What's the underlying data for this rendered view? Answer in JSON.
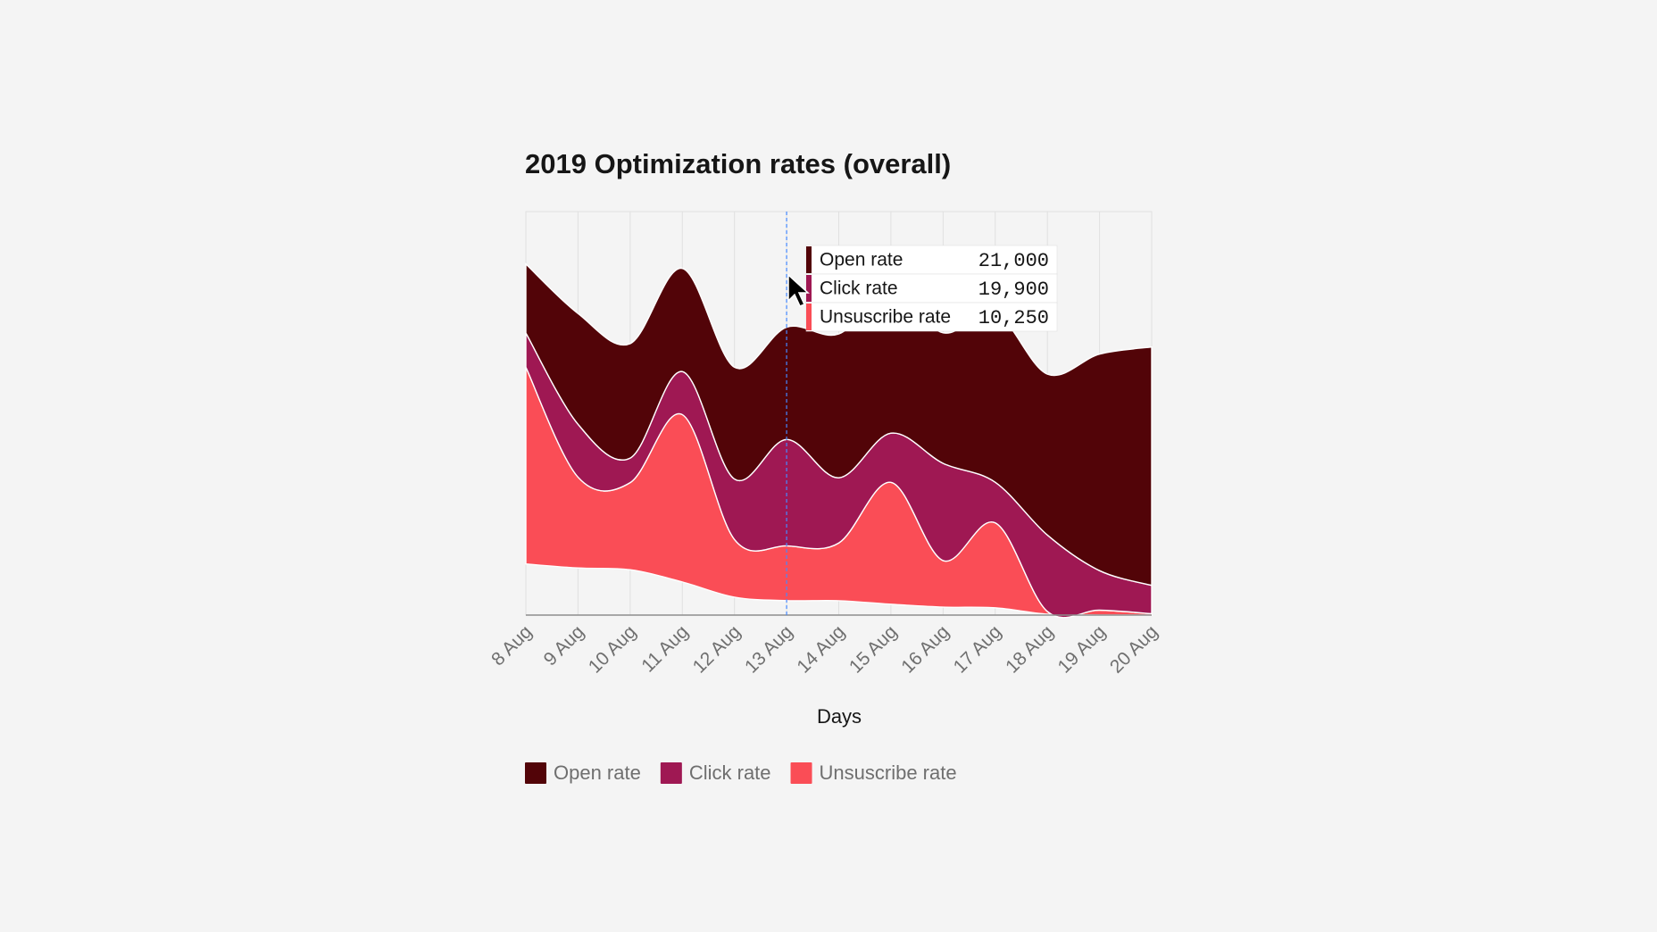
{
  "chart_data": {
    "type": "area",
    "title": "2019 Optimization rates (overall)",
    "x_label": "Days",
    "categories": [
      "8 Aug",
      "9 Aug",
      "10 Aug",
      "11 Aug",
      "12 Aug",
      "13 Aug",
      "14 Aug",
      "15 Aug",
      "16 Aug",
      "17 Aug",
      "18 Aug",
      "19 Aug",
      "20 Aug"
    ],
    "stacked": true,
    "offset": "wiggle",
    "grid": true,
    "series": [
      {
        "name": "Unsuscribe rate",
        "color": "#fa4d56",
        "values": [
          36800,
          17000,
          16300,
          31300,
          10800,
          10250,
          10800,
          22800,
          8700,
          15900,
          500,
          900,
          250
        ],
        "value_labels": [
          null,
          null,
          null,
          null,
          null,
          "10,250",
          null,
          null,
          null,
          null,
          null,
          null,
          null
        ]
      },
      {
        "name": "Click rate",
        "color": "#9f1853",
        "values": [
          6400,
          9900,
          4600,
          8050,
          11300,
          19900,
          12200,
          9200,
          18200,
          7600,
          14300,
          7400,
          5300
        ],
        "value_labels": [
          null,
          null,
          null,
          null,
          null,
          "19,900",
          null,
          null,
          null,
          null,
          null,
          null,
          null
        ]
      },
      {
        "name": "Open rate",
        "color": "#520408",
        "values": [
          12900,
          20700,
          21400,
          19300,
          20900,
          21000,
          26900,
          26700,
          24400,
          31700,
          30100,
          40500,
          44600
        ],
        "value_labels": [
          null,
          null,
          null,
          null,
          null,
          "21,000",
          null,
          null,
          null,
          null,
          null,
          null,
          null
        ]
      }
    ]
  }
}
